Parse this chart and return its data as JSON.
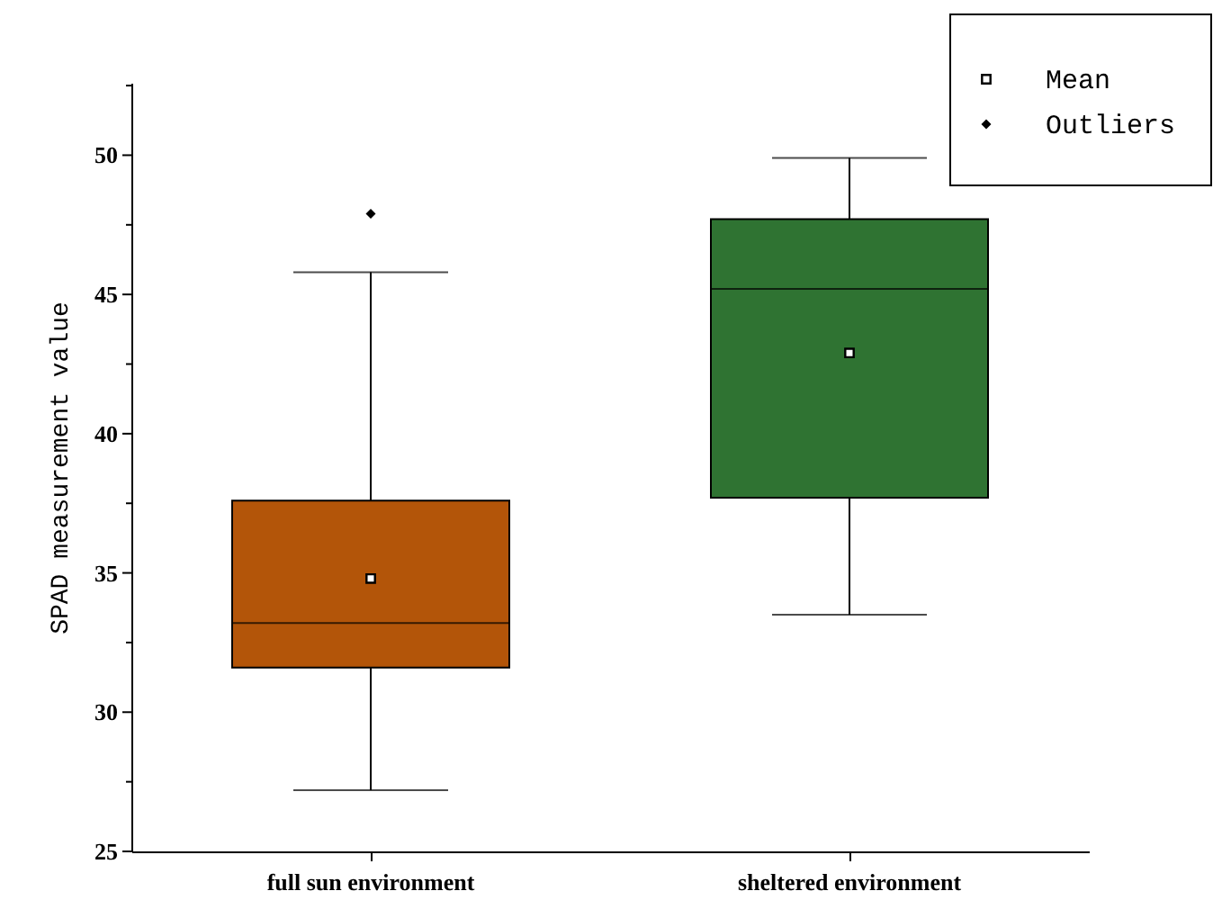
{
  "chart_data": {
    "type": "box",
    "ylabel": "SPAD measurement value",
    "categories": [
      "full sun environment",
      "sheltered environment"
    ],
    "series": [
      {
        "colors": [
          "#b35509",
          "#2f7332"
        ],
        "boxes": [
          {
            "low": 27.2,
            "q1": 31.6,
            "median": 33.2,
            "q3": 37.6,
            "high": 45.8
          },
          {
            "low": 33.5,
            "q1": 37.7,
            "median": 45.2,
            "q3": 47.7,
            "high": 49.9
          }
        ]
      },
      {
        "type": "scatter",
        "name": "Mean",
        "marker": "square",
        "color": "#000000",
        "x": [
          "full sun environment",
          "sheltered environment"
        ],
        "values": [
          34.8,
          42.9
        ]
      },
      {
        "type": "scatter",
        "name": "Outliers",
        "marker": "diamond",
        "color": "#000000",
        "x": [
          "full sun environment"
        ],
        "values": [
          47.9
        ]
      }
    ],
    "ylim": [
      25,
      52.6
    ],
    "yticks": [
      25,
      {
        "value": 27.5,
        "label": null
      },
      30,
      {
        "value": 32.5,
        "label": null
      },
      35,
      {
        "value": 37.5,
        "label": null
      },
      40,
      {
        "value": 42.5,
        "label": null
      },
      45,
      {
        "value": 47.5,
        "label": null
      },
      50,
      {
        "value": 52.5,
        "label": null
      }
    ],
    "grid": false,
    "legend": "top right"
  }
}
